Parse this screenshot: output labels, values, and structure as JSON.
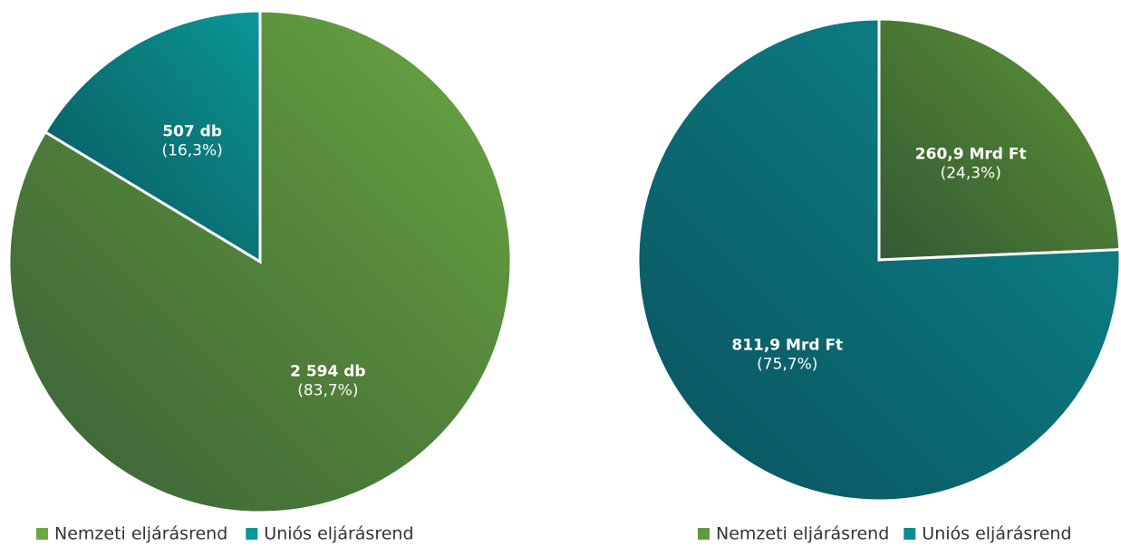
{
  "chart_data": [
    {
      "type": "pie",
      "categories": [
        "Nemzeti eljárásrend",
        "Uniós eljárásrend"
      ],
      "values": [
        2594,
        507
      ],
      "value_labels": [
        "2 594 db",
        "507 db"
      ],
      "share_labels": [
        "(83,7%)",
        "(16,3%)"
      ],
      "colors": [
        "#6aa845",
        "#0b9797"
      ]
    },
    {
      "type": "pie",
      "categories": [
        "Nemzeti eljárásrend",
        "Uniós eljárásrend"
      ],
      "values": [
        260.9,
        811.9
      ],
      "value_labels": [
        "260,9 Mrd Ft",
        "811,9 Mrd Ft"
      ],
      "share_labels": [
        "(24,3%)",
        "(75,7%)"
      ],
      "colors": [
        "#5f9a3d",
        "#0d8c94"
      ]
    }
  ]
}
